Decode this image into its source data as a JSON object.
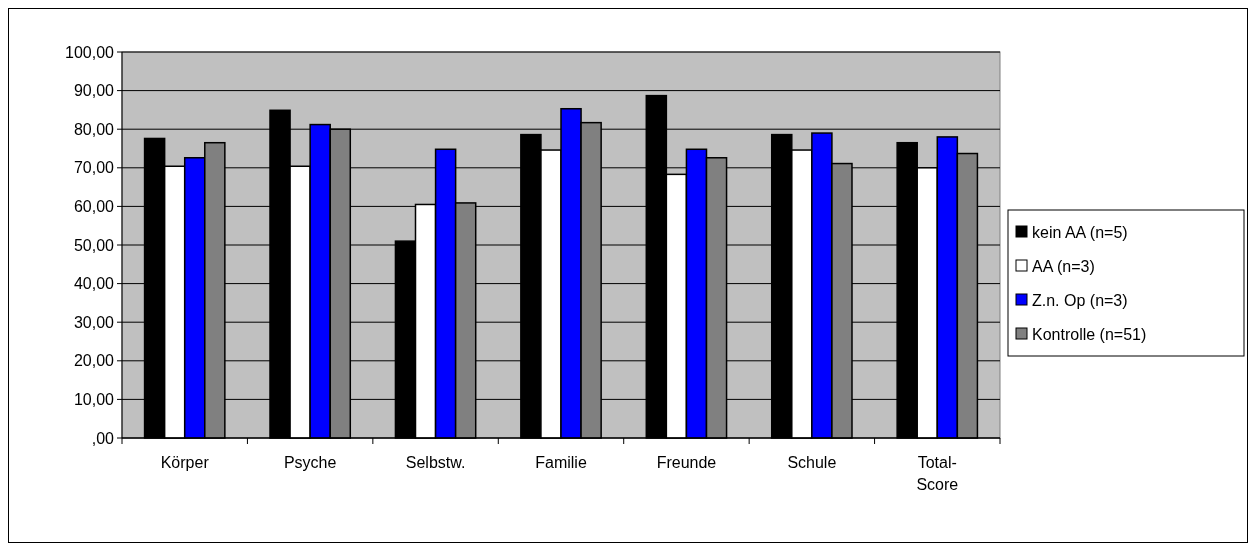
{
  "chart_data": {
    "type": "bar",
    "categories": [
      "Körper",
      "Psyche",
      "Selbstw.",
      "Familie",
      "Freunde",
      "Schule",
      "Total-\nScore"
    ],
    "series": [
      {
        "name": "kein AA (n=5)",
        "color": "#000000",
        "values": [
          77.6,
          84.9,
          51.0,
          78.6,
          88.7,
          78.6,
          76.5
        ]
      },
      {
        "name": "AA (n=3)",
        "color": "#ffffff",
        "values": [
          70.4,
          70.4,
          60.5,
          74.6,
          68.3,
          74.6,
          70.0
        ]
      },
      {
        "name": "Z.n. Op (n=3)",
        "color": "#0000ff",
        "values": [
          72.6,
          81.2,
          74.8,
          85.3,
          74.8,
          79.0,
          78.0
        ]
      },
      {
        "name": "Kontrolle (n=51)",
        "color": "#808080",
        "values": [
          76.5,
          80.0,
          60.9,
          81.7,
          72.6,
          71.1,
          73.7
        ]
      }
    ],
    "ylim": [
      0,
      100
    ],
    "yticks": [
      {
        "value": 0,
        "label": ",00"
      },
      {
        "value": 10,
        "label": "10,00"
      },
      {
        "value": 20,
        "label": "20,00"
      },
      {
        "value": 30,
        "label": "30,00"
      },
      {
        "value": 40,
        "label": "40,00"
      },
      {
        "value": 50,
        "label": "50,00"
      },
      {
        "value": 60,
        "label": "60,00"
      },
      {
        "value": 70,
        "label": "70,00"
      },
      {
        "value": 80,
        "label": "80,00"
      },
      {
        "value": 90,
        "label": "90,00"
      },
      {
        "value": 100,
        "label": "100,00"
      }
    ],
    "grid": "y",
    "legend": "right"
  }
}
